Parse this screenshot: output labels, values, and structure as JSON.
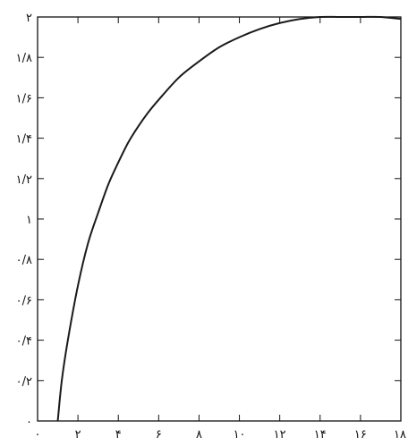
{
  "chart_data": {
    "type": "line",
    "title": "",
    "xlabel": "",
    "ylabel": "",
    "xlim": [
      0,
      18
    ],
    "ylim": [
      0,
      2
    ],
    "x_ticks": [
      0,
      2,
      4,
      6,
      8,
      10,
      12,
      14,
      16,
      18
    ],
    "x_tick_labels": [
      "۰",
      "۲",
      "۴",
      "۶",
      "۸",
      "۱۰",
      "۱۲",
      "۱۴",
      "۱۶",
      "۱۸"
    ],
    "y_ticks": [
      0,
      0.2,
      0.4,
      0.6,
      0.8,
      1,
      1.2,
      1.4,
      1.6,
      1.8,
      2
    ],
    "y_tick_labels": [
      "۰",
      "۰/۲",
      "۰/۴",
      "۰/۶",
      "۰/۸",
      "۱",
      "۱/۲",
      "۱/۴",
      "۱/۶",
      "۱/۸",
      "۲"
    ],
    "grid": false,
    "series": [
      {
        "color": "#1a1a1a",
        "x": [
          1.0,
          1.2,
          1.5,
          2.0,
          2.5,
          3.0,
          3.5,
          4.0,
          4.5,
          5.0,
          5.5,
          6.0,
          7.0,
          8.0,
          9.0,
          10.0,
          11.0,
          12.0,
          13.0,
          14.0,
          15.0,
          16.0,
          17.0,
          18.0
        ],
        "y": [
          0.0,
          0.2,
          0.4,
          0.67,
          0.88,
          1.03,
          1.17,
          1.28,
          1.38,
          1.46,
          1.53,
          1.59,
          1.7,
          1.78,
          1.85,
          1.9,
          1.94,
          1.97,
          1.99,
          2.0,
          2.0,
          2.0,
          2.0,
          1.99
        ]
      }
    ]
  }
}
